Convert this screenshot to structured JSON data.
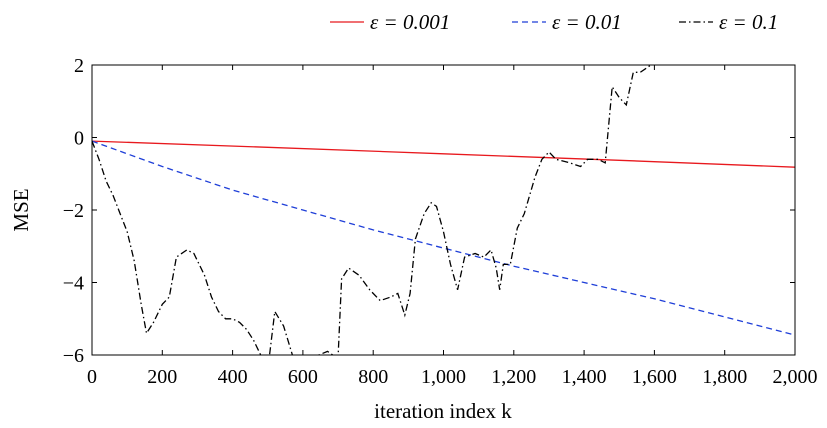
{
  "chart_data": {
    "type": "line",
    "title": "",
    "xlabel": "iteration index k",
    "ylabel": "MSE",
    "xlim": [
      0,
      2000
    ],
    "ylim": [
      -6,
      2
    ],
    "xticks": [
      0,
      200,
      400,
      600,
      800,
      1000,
      1200,
      1400,
      1600,
      1800,
      2000
    ],
    "xtick_labels": [
      "0",
      "200",
      "400",
      "600",
      "800",
      "1,000",
      "1,200",
      "1,400",
      "1,600",
      "1,800",
      "2,000"
    ],
    "yticks": [
      -6,
      -4,
      -2,
      0,
      2
    ],
    "ytick_labels": [
      "−6",
      "−4",
      "−2",
      "0",
      "2"
    ],
    "grid": false,
    "legend_position": "top-right",
    "series": [
      {
        "name": "ε = 0.001",
        "color": "#e8191e",
        "style": "solid",
        "points": [
          [
            0,
            -0.1
          ],
          [
            500,
            -0.27
          ],
          [
            1000,
            -0.45
          ],
          [
            1500,
            -0.63
          ],
          [
            2000,
            -0.82
          ]
        ]
      },
      {
        "name": "ε = 0.01",
        "color": "#1f3fd8",
        "style": "dashed",
        "points": [
          [
            0,
            -0.1
          ],
          [
            200,
            -0.8
          ],
          [
            400,
            -1.45
          ],
          [
            600,
            -2.0
          ],
          [
            800,
            -2.55
          ],
          [
            1000,
            -3.05
          ],
          [
            1200,
            -3.55
          ],
          [
            1400,
            -4.0
          ],
          [
            1600,
            -4.45
          ],
          [
            1800,
            -4.95
          ],
          [
            2000,
            -5.45
          ]
        ]
      },
      {
        "name": "ε = 0.1",
        "color": "#000000",
        "style": "dashdot",
        "points": [
          [
            0,
            -0.1
          ],
          [
            20,
            -0.6
          ],
          [
            40,
            -1.2
          ],
          [
            60,
            -1.6
          ],
          [
            80,
            -2.1
          ],
          [
            100,
            -2.6
          ],
          [
            120,
            -3.4
          ],
          [
            140,
            -4.6
          ],
          [
            155,
            -5.4
          ],
          [
            175,
            -5.1
          ],
          [
            200,
            -4.6
          ],
          [
            220,
            -4.4
          ],
          [
            240,
            -3.3
          ],
          [
            270,
            -3.1
          ],
          [
            290,
            -3.2
          ],
          [
            320,
            -3.8
          ],
          [
            340,
            -4.4
          ],
          [
            360,
            -4.8
          ],
          [
            380,
            -5.0
          ],
          [
            400,
            -5.0
          ],
          [
            420,
            -5.1
          ],
          [
            440,
            -5.3
          ],
          [
            460,
            -5.6
          ],
          [
            480,
            -6.0
          ],
          [
            500,
            -6.4
          ],
          [
            520,
            -4.8
          ],
          [
            545,
            -5.2
          ],
          [
            570,
            -6.0
          ],
          [
            590,
            -6.8
          ],
          [
            620,
            -6.5
          ],
          [
            645,
            -6.0
          ],
          [
            670,
            -5.9
          ],
          [
            700,
            -6.1
          ],
          [
            710,
            -3.9
          ],
          [
            730,
            -3.6
          ],
          [
            760,
            -3.8
          ],
          [
            790,
            -4.2
          ],
          [
            820,
            -4.5
          ],
          [
            850,
            -4.4
          ],
          [
            870,
            -4.3
          ],
          [
            890,
            -4.9
          ],
          [
            905,
            -4.3
          ],
          [
            920,
            -2.8
          ],
          [
            945,
            -2.1
          ],
          [
            965,
            -1.8
          ],
          [
            980,
            -1.9
          ],
          [
            1000,
            -2.6
          ],
          [
            1020,
            -3.5
          ],
          [
            1040,
            -4.2
          ],
          [
            1060,
            -3.3
          ],
          [
            1090,
            -3.2
          ],
          [
            1115,
            -3.3
          ],
          [
            1135,
            -3.1
          ],
          [
            1150,
            -3.6
          ],
          [
            1160,
            -4.2
          ],
          [
            1170,
            -3.5
          ],
          [
            1190,
            -3.5
          ],
          [
            1210,
            -2.5
          ],
          [
            1230,
            -2.1
          ],
          [
            1260,
            -1.1
          ],
          [
            1280,
            -0.6
          ],
          [
            1300,
            -0.4
          ],
          [
            1320,
            -0.6
          ],
          [
            1360,
            -0.7
          ],
          [
            1390,
            -0.8
          ],
          [
            1410,
            -0.6
          ],
          [
            1440,
            -0.6
          ],
          [
            1460,
            -0.7
          ],
          [
            1480,
            1.4
          ],
          [
            1500,
            1.1
          ],
          [
            1520,
            0.9
          ],
          [
            1540,
            1.8
          ],
          [
            1560,
            1.8
          ],
          [
            1590,
            2.0
          ]
        ]
      }
    ]
  }
}
